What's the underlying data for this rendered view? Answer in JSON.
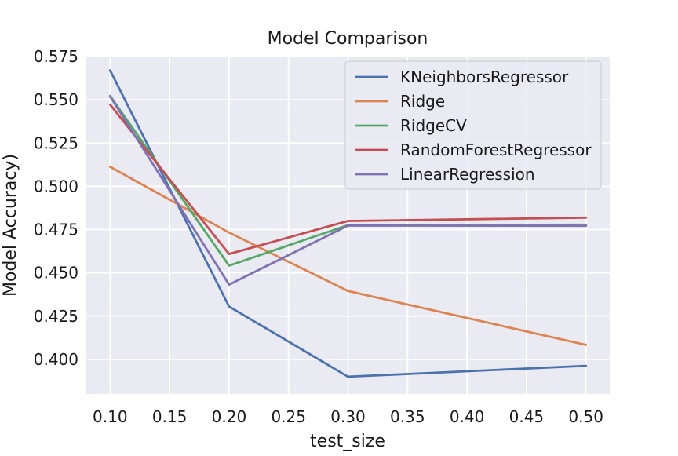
{
  "chart_data": {
    "type": "line",
    "title": "Model Comparison",
    "xlabel": "test_size",
    "ylabel": "Model Accuracy)",
    "x": [
      0.1,
      0.2,
      0.3,
      0.5
    ],
    "xlim": [
      0.08,
      0.52
    ],
    "ylim": [
      0.38,
      0.575
    ],
    "xticks": [
      0.1,
      0.15,
      0.2,
      0.25,
      0.3,
      0.35,
      0.4,
      0.45,
      0.5
    ],
    "xtick_labels": [
      "0.10",
      "0.15",
      "0.20",
      "0.25",
      "0.30",
      "0.35",
      "0.40",
      "0.45",
      "0.50"
    ],
    "yticks": [
      0.4,
      0.425,
      0.45,
      0.475,
      0.5,
      0.525,
      0.55,
      0.575
    ],
    "ytick_labels": [
      "0.400",
      "0.425",
      "0.450",
      "0.475",
      "0.500",
      "0.525",
      "0.550",
      "0.575"
    ],
    "grid": true,
    "legend_position": "top-right",
    "series": [
      {
        "name": "KNeighborsRegressor",
        "color": "#4c72b0",
        "values": [
          0.567,
          0.4305,
          0.39,
          0.3963
        ]
      },
      {
        "name": "Ridge",
        "color": "#dd8452",
        "values": [
          0.5113,
          0.4733,
          0.4395,
          0.4084
        ]
      },
      {
        "name": "RidgeCV",
        "color": "#55a868",
        "values": [
          0.5523,
          0.4542,
          0.4776,
          0.4778
        ]
      },
      {
        "name": "RandomForestRegressor",
        "color": "#c44e52",
        "values": [
          0.5473,
          0.4609,
          0.48,
          0.4819
        ]
      },
      {
        "name": "LinearRegression",
        "color": "#8172b3",
        "values": [
          0.552,
          0.4432,
          0.4773,
          0.4772
        ]
      }
    ]
  }
}
